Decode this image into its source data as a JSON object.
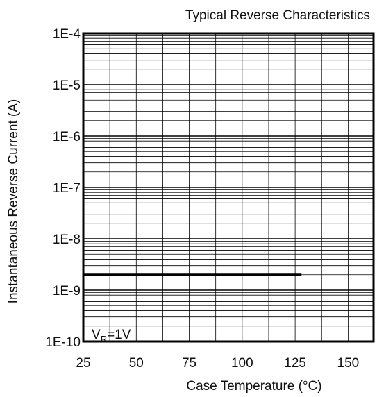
{
  "chart_data": {
    "type": "line",
    "title": "Typical Reverse Characteristics",
    "xlabel": "Case Temperature (°C)",
    "ylabel": "Instantaneous Reverse Current (A)",
    "x_ticks": [
      25,
      50,
      75,
      100,
      125,
      150
    ],
    "x_range": [
      25,
      162
    ],
    "y_scale": "log",
    "y_range": [
      1e-10,
      0.0001
    ],
    "y_ticks": [
      "1E-4",
      "1E-5",
      "1E-6",
      "1E-7",
      "1E-8",
      "1E-9",
      "1E-10"
    ],
    "grid": true,
    "annotation": {
      "main": "V",
      "sub": "R",
      "rest": "=1V"
    },
    "series": [
      {
        "x": [
          25,
          128
        ],
        "y": [
          2e-09,
          2e-09
        ]
      }
    ]
  }
}
